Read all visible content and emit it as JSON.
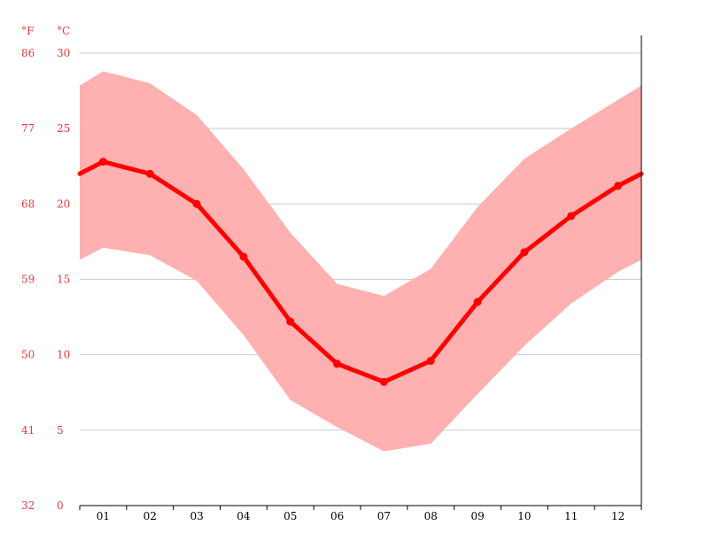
{
  "chart_data": {
    "type": "line",
    "units": {
      "fahrenheit": "°F",
      "celsius": "°C"
    },
    "categories": [
      "01",
      "02",
      "03",
      "04",
      "05",
      "06",
      "07",
      "08",
      "09",
      "10",
      "11",
      "12"
    ],
    "y_ticks_celsius": [
      "0",
      "5",
      "10",
      "15",
      "20",
      "25",
      "30"
    ],
    "y_ticks_fahrenheit": [
      "32",
      "41",
      "50",
      "59",
      "68",
      "77",
      "86"
    ],
    "ylim": [
      0,
      30
    ],
    "series": [
      {
        "role": "average",
        "values": [
          22.8,
          22.0,
          20.0,
          16.5,
          12.2,
          9.4,
          8.2,
          9.6,
          13.5,
          16.8,
          19.2,
          21.2
        ]
      },
      {
        "role": "max",
        "values": [
          28.8,
          28.0,
          25.9,
          22.3,
          18.1,
          14.7,
          13.9,
          15.7,
          19.8,
          23.0,
          25.0,
          26.9
        ]
      },
      {
        "role": "min",
        "values": [
          17.1,
          16.6,
          14.9,
          11.3,
          7.0,
          5.2,
          3.6,
          4.1,
          7.4,
          10.6,
          13.4,
          15.5
        ]
      }
    ],
    "colors": {
      "line": "#ff0000",
      "band": "#ffb0b0",
      "grid": "#cccccc",
      "axis": "#000000",
      "tick_label": "#e8383b"
    },
    "grid": true
  }
}
